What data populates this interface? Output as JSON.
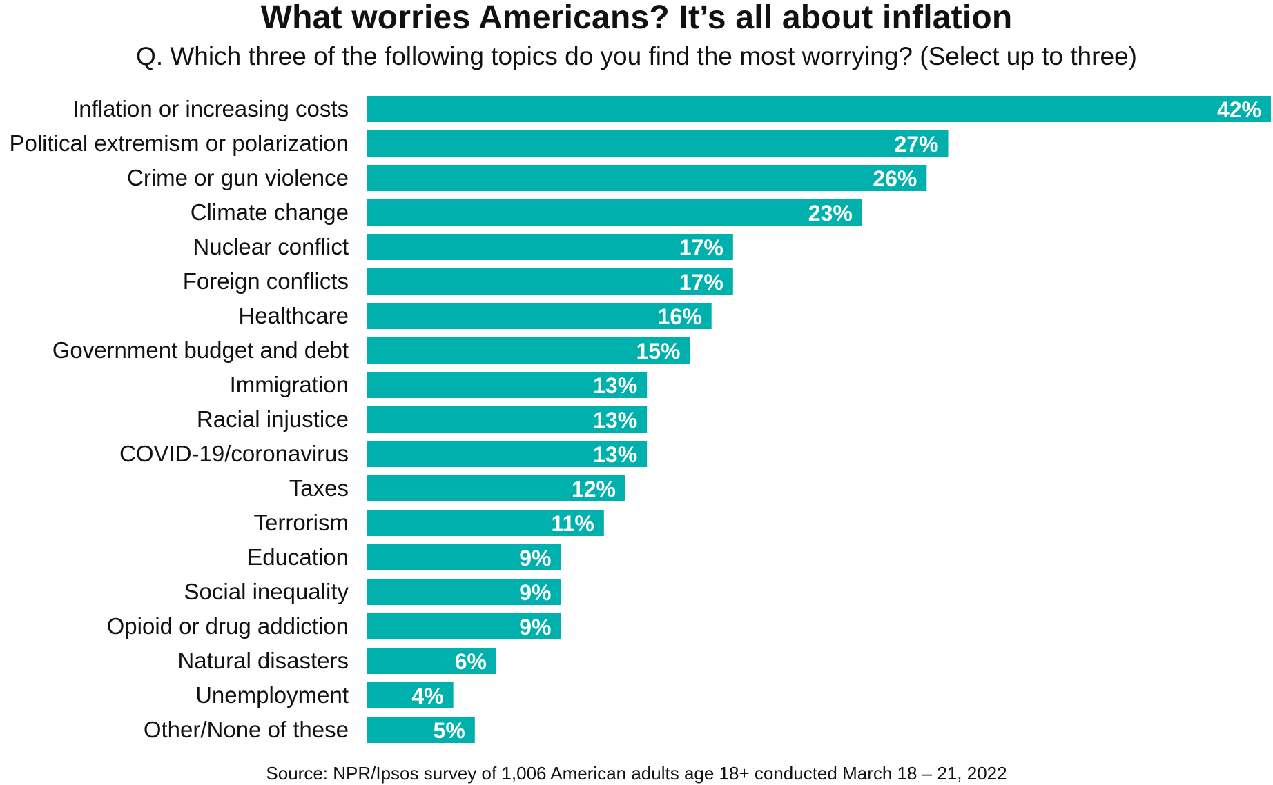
{
  "chart_data": {
    "type": "bar",
    "orientation": "horizontal",
    "title": "What worries Americans? It’s all about inflation",
    "subtitle": "Q. Which three of the following topics do you find the most worrying? (Select up to three)",
    "source": "Source: NPR/Ipsos survey of 1,006 American adults age 18+ conducted March 18 – 21, 2022",
    "categories": [
      "Inflation or increasing costs",
      "Political extremism or polarization",
      "Crime or gun violence",
      "Climate change",
      "Nuclear conflict",
      "Foreign conflicts",
      "Healthcare",
      "Government budget and debt",
      "Immigration",
      "Racial injustice",
      "COVID-19/coronavirus",
      "Taxes",
      "Terrorism",
      "Education",
      "Social inequality",
      "Opioid or drug addiction",
      "Natural disasters",
      "Unemployment",
      "Other/None of these"
    ],
    "values": [
      42,
      27,
      26,
      23,
      17,
      17,
      16,
      15,
      13,
      13,
      13,
      12,
      11,
      9,
      9,
      9,
      6,
      4,
      5
    ],
    "value_labels": [
      "42%",
      "27%",
      "26%",
      "23%",
      "17%",
      "17%",
      "16%",
      "15%",
      "13%",
      "13%",
      "13%",
      "12%",
      "11%",
      "9%",
      "9%",
      "9%",
      "6%",
      "4%",
      "5%"
    ],
    "unit": "%",
    "xlim": [
      0,
      42
    ],
    "grid": false,
    "legend": "none",
    "bar_color": "#00b0ac"
  }
}
